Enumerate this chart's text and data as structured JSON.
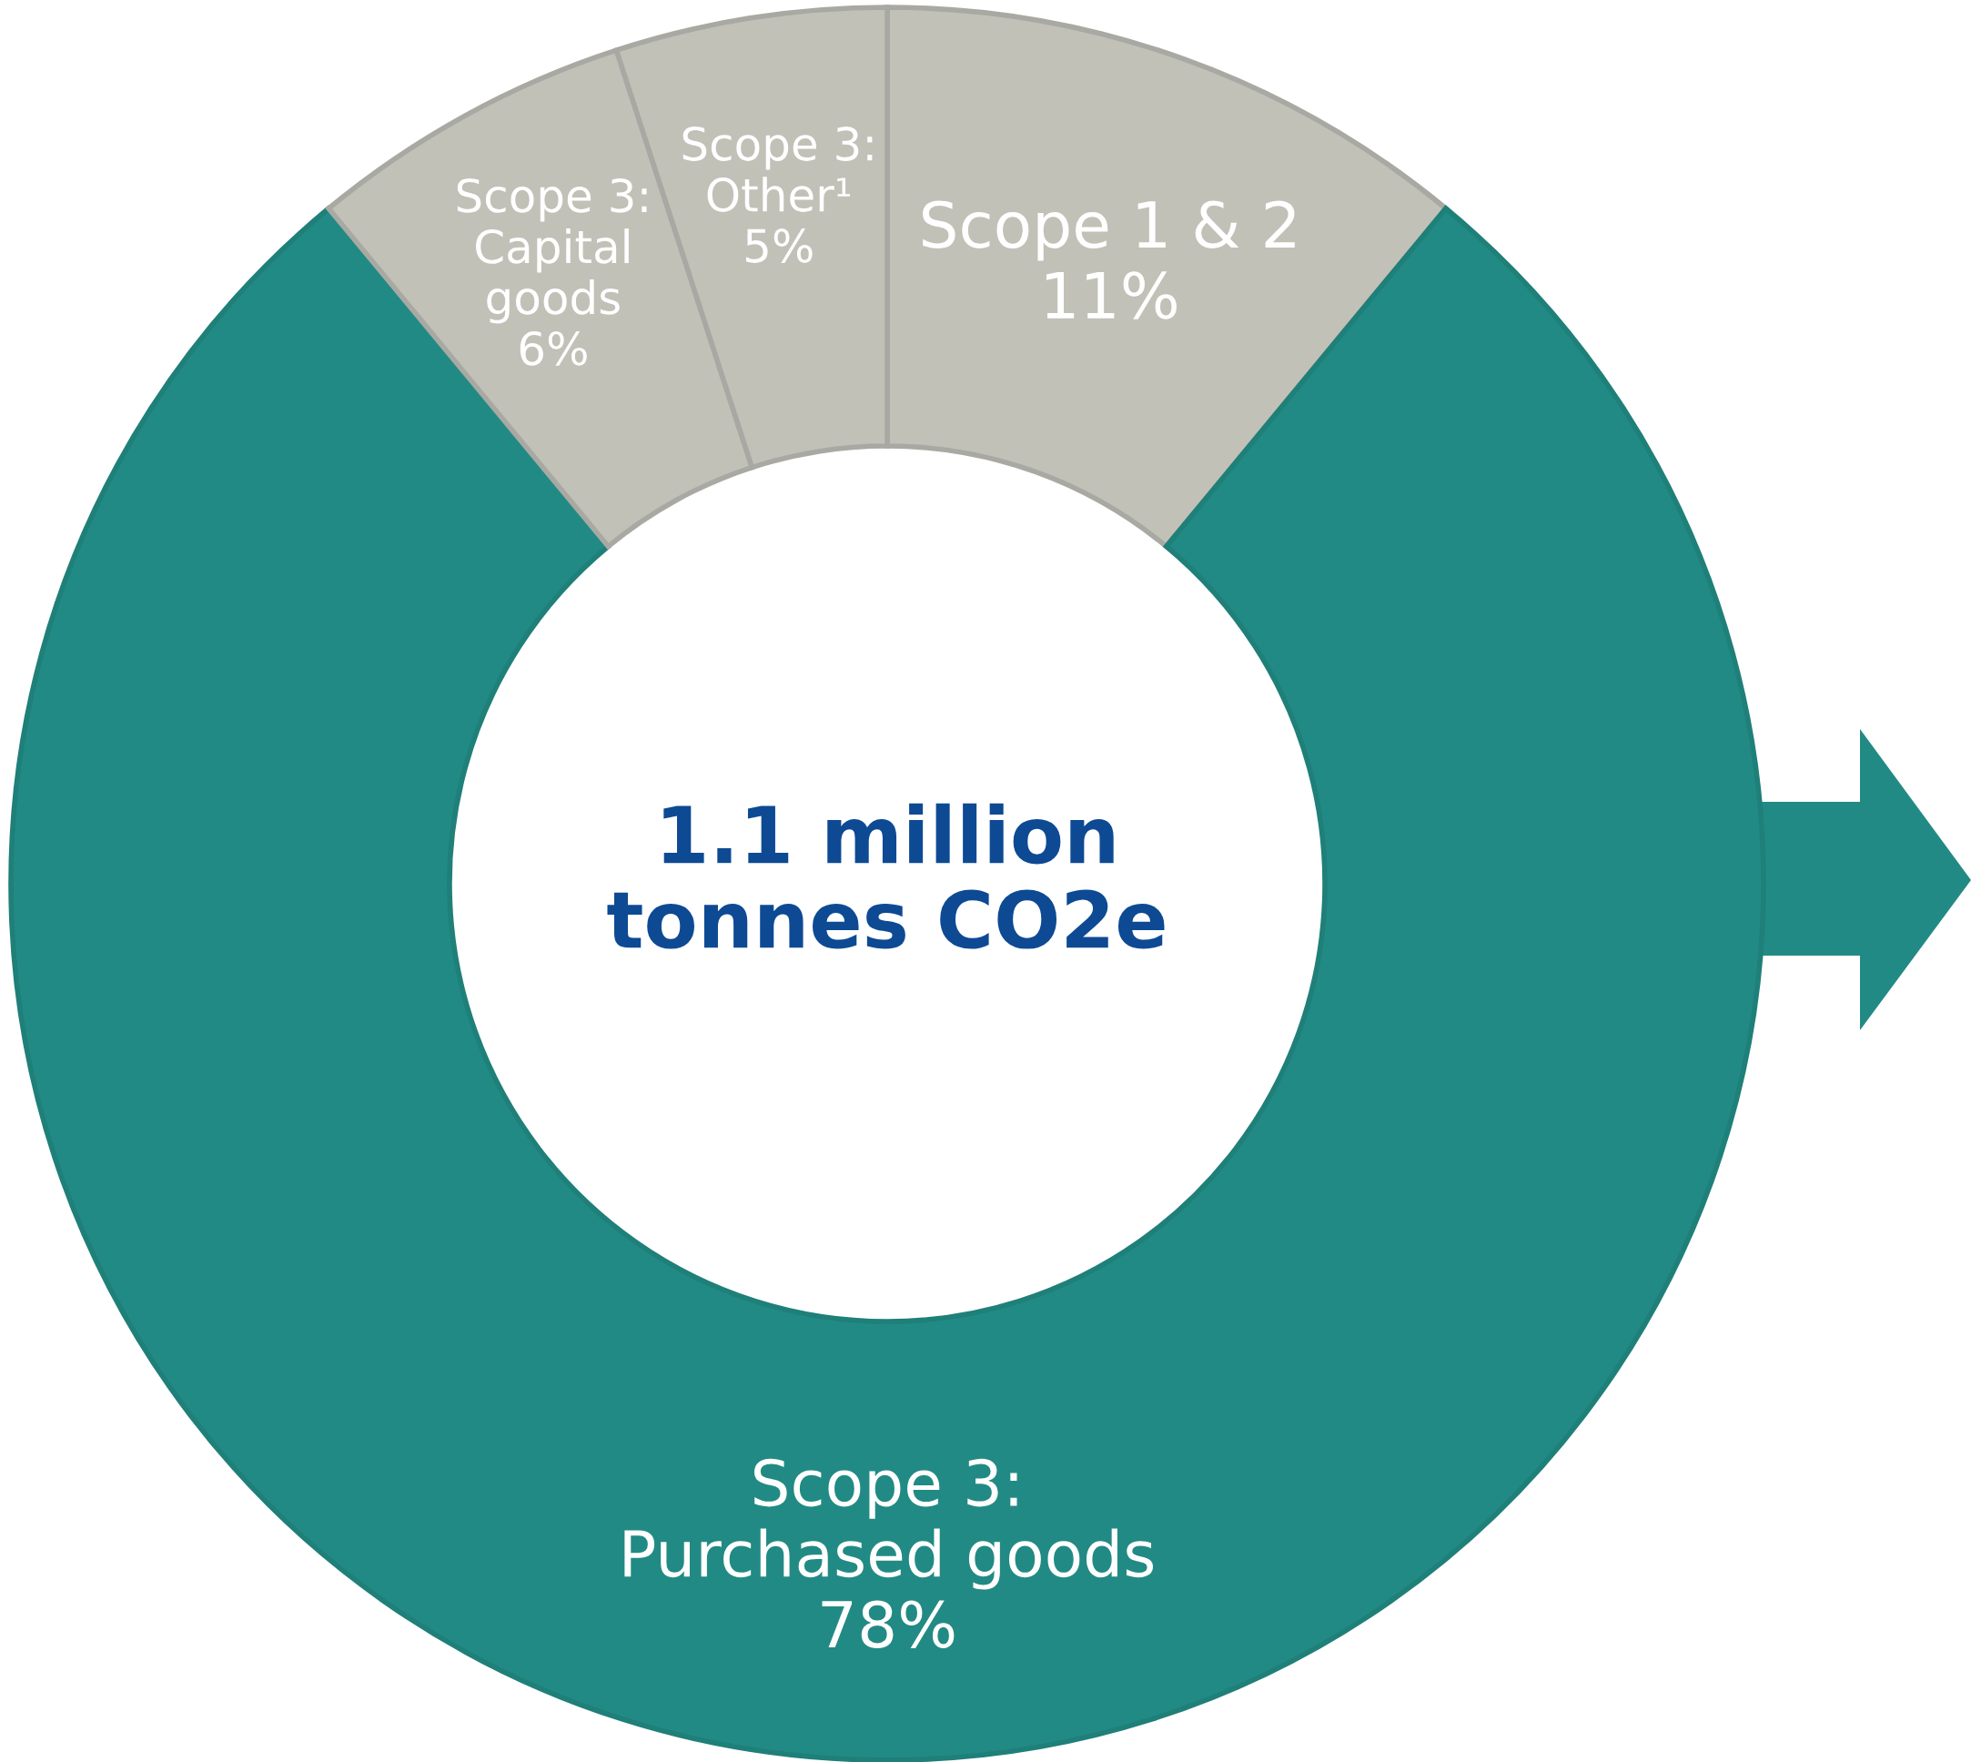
{
  "chart_data": {
    "type": "donut",
    "categories": [
      "Scope 1 & 2",
      "Scope 3: Purchased goods",
      "Scope 3: Capital goods",
      "Scope 3: Other¹"
    ],
    "values": [
      11,
      78,
      6,
      5
    ],
    "value_labels": [
      "11%",
      "78%",
      "6%",
      "5%"
    ],
    "colors": [
      "#c1c1b8",
      "#228a84",
      "#c1c1b8",
      "#c1c1b8"
    ],
    "annotations": [
      "1.1 million\ntonnes CO2e"
    ],
    "legend": false
  }
}
